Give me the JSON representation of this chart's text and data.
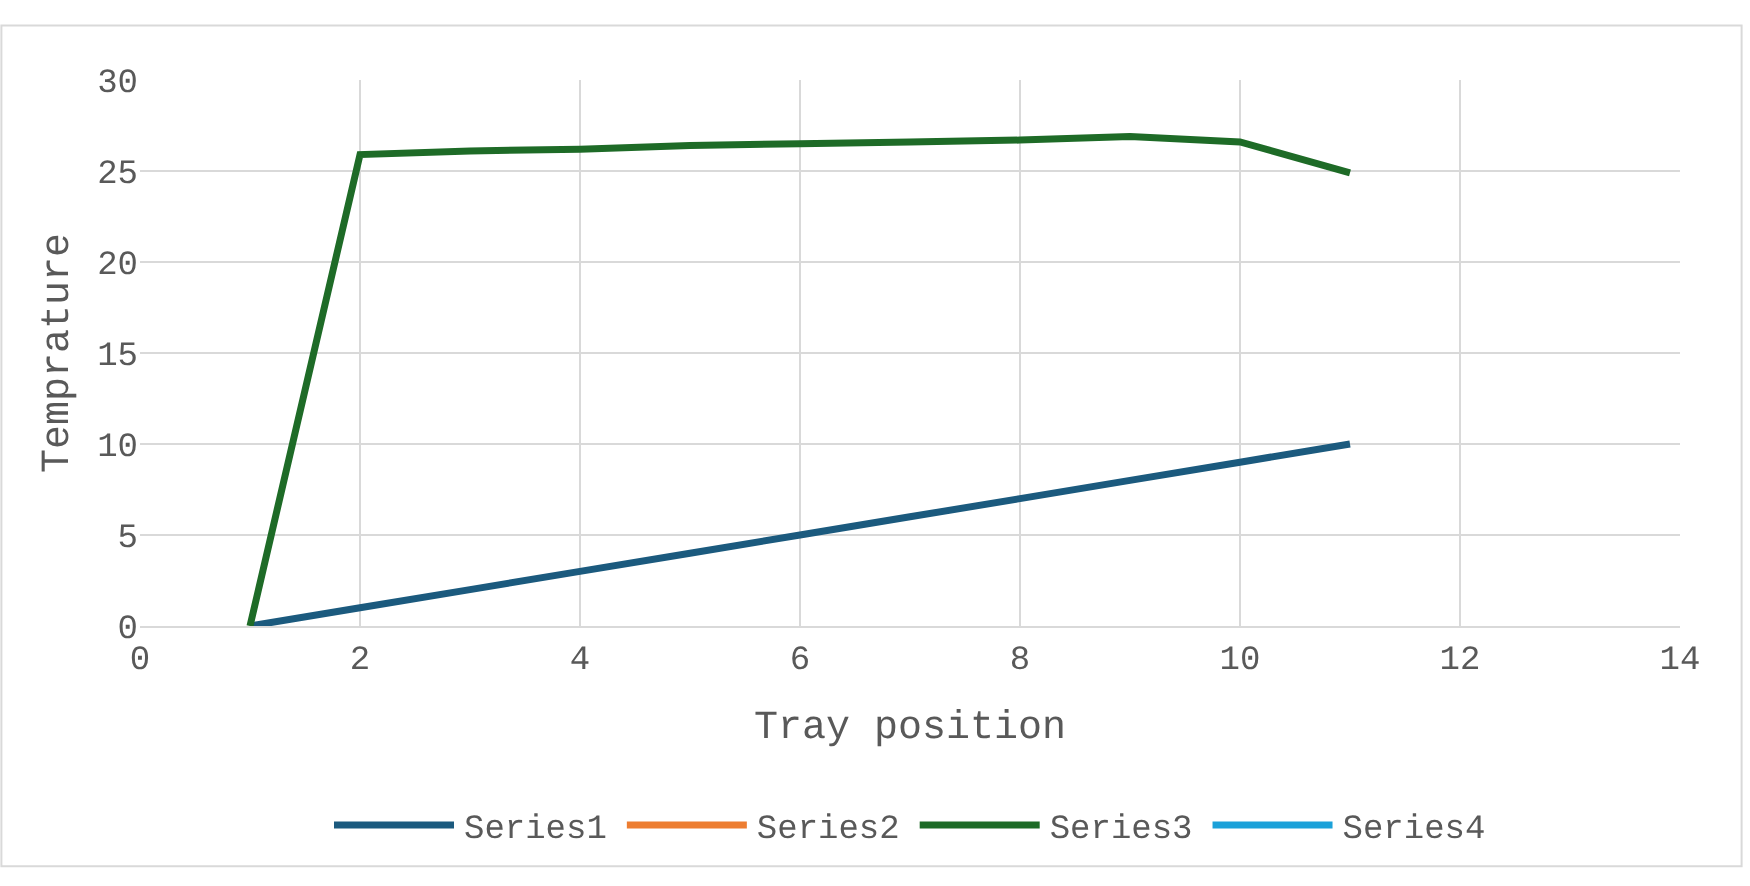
{
  "chart_data": {
    "type": "line",
    "xlabel": "Tray position",
    "ylabel": "Temprature",
    "x": [
      1,
      2,
      3,
      4,
      5,
      6,
      7,
      8,
      9,
      10,
      11
    ],
    "series": [
      {
        "name": "Series1",
        "color": "#1b5a7e",
        "values": [
          0,
          1,
          2,
          3,
          4,
          5,
          6,
          7,
          8,
          9,
          10
        ]
      },
      {
        "name": "Series2",
        "color": "#ed7d31",
        "values": [
          null,
          null,
          null,
          null,
          null,
          null,
          null,
          null,
          null,
          null,
          null
        ]
      },
      {
        "name": "Series3",
        "color": "#1e6b27",
        "values": [
          0,
          25.9,
          26.1,
          26.2,
          26.4,
          26.5,
          26.6,
          26.7,
          26.9,
          26.6,
          24.9
        ]
      },
      {
        "name": "Series4",
        "color": "#1ba1d9",
        "values": [
          null,
          null,
          null,
          null,
          null,
          null,
          null,
          null,
          null,
          null,
          null
        ]
      }
    ],
    "xlim": [
      0,
      14
    ],
    "xticks": [
      0,
      2,
      4,
      6,
      8,
      10,
      12,
      14
    ],
    "ylim": [
      0,
      30
    ],
    "yticks": [
      0,
      5,
      10,
      15,
      20,
      25,
      30
    ],
    "grid": true,
    "legend": "bottom",
    "marker": "none",
    "line_style": "solid"
  }
}
